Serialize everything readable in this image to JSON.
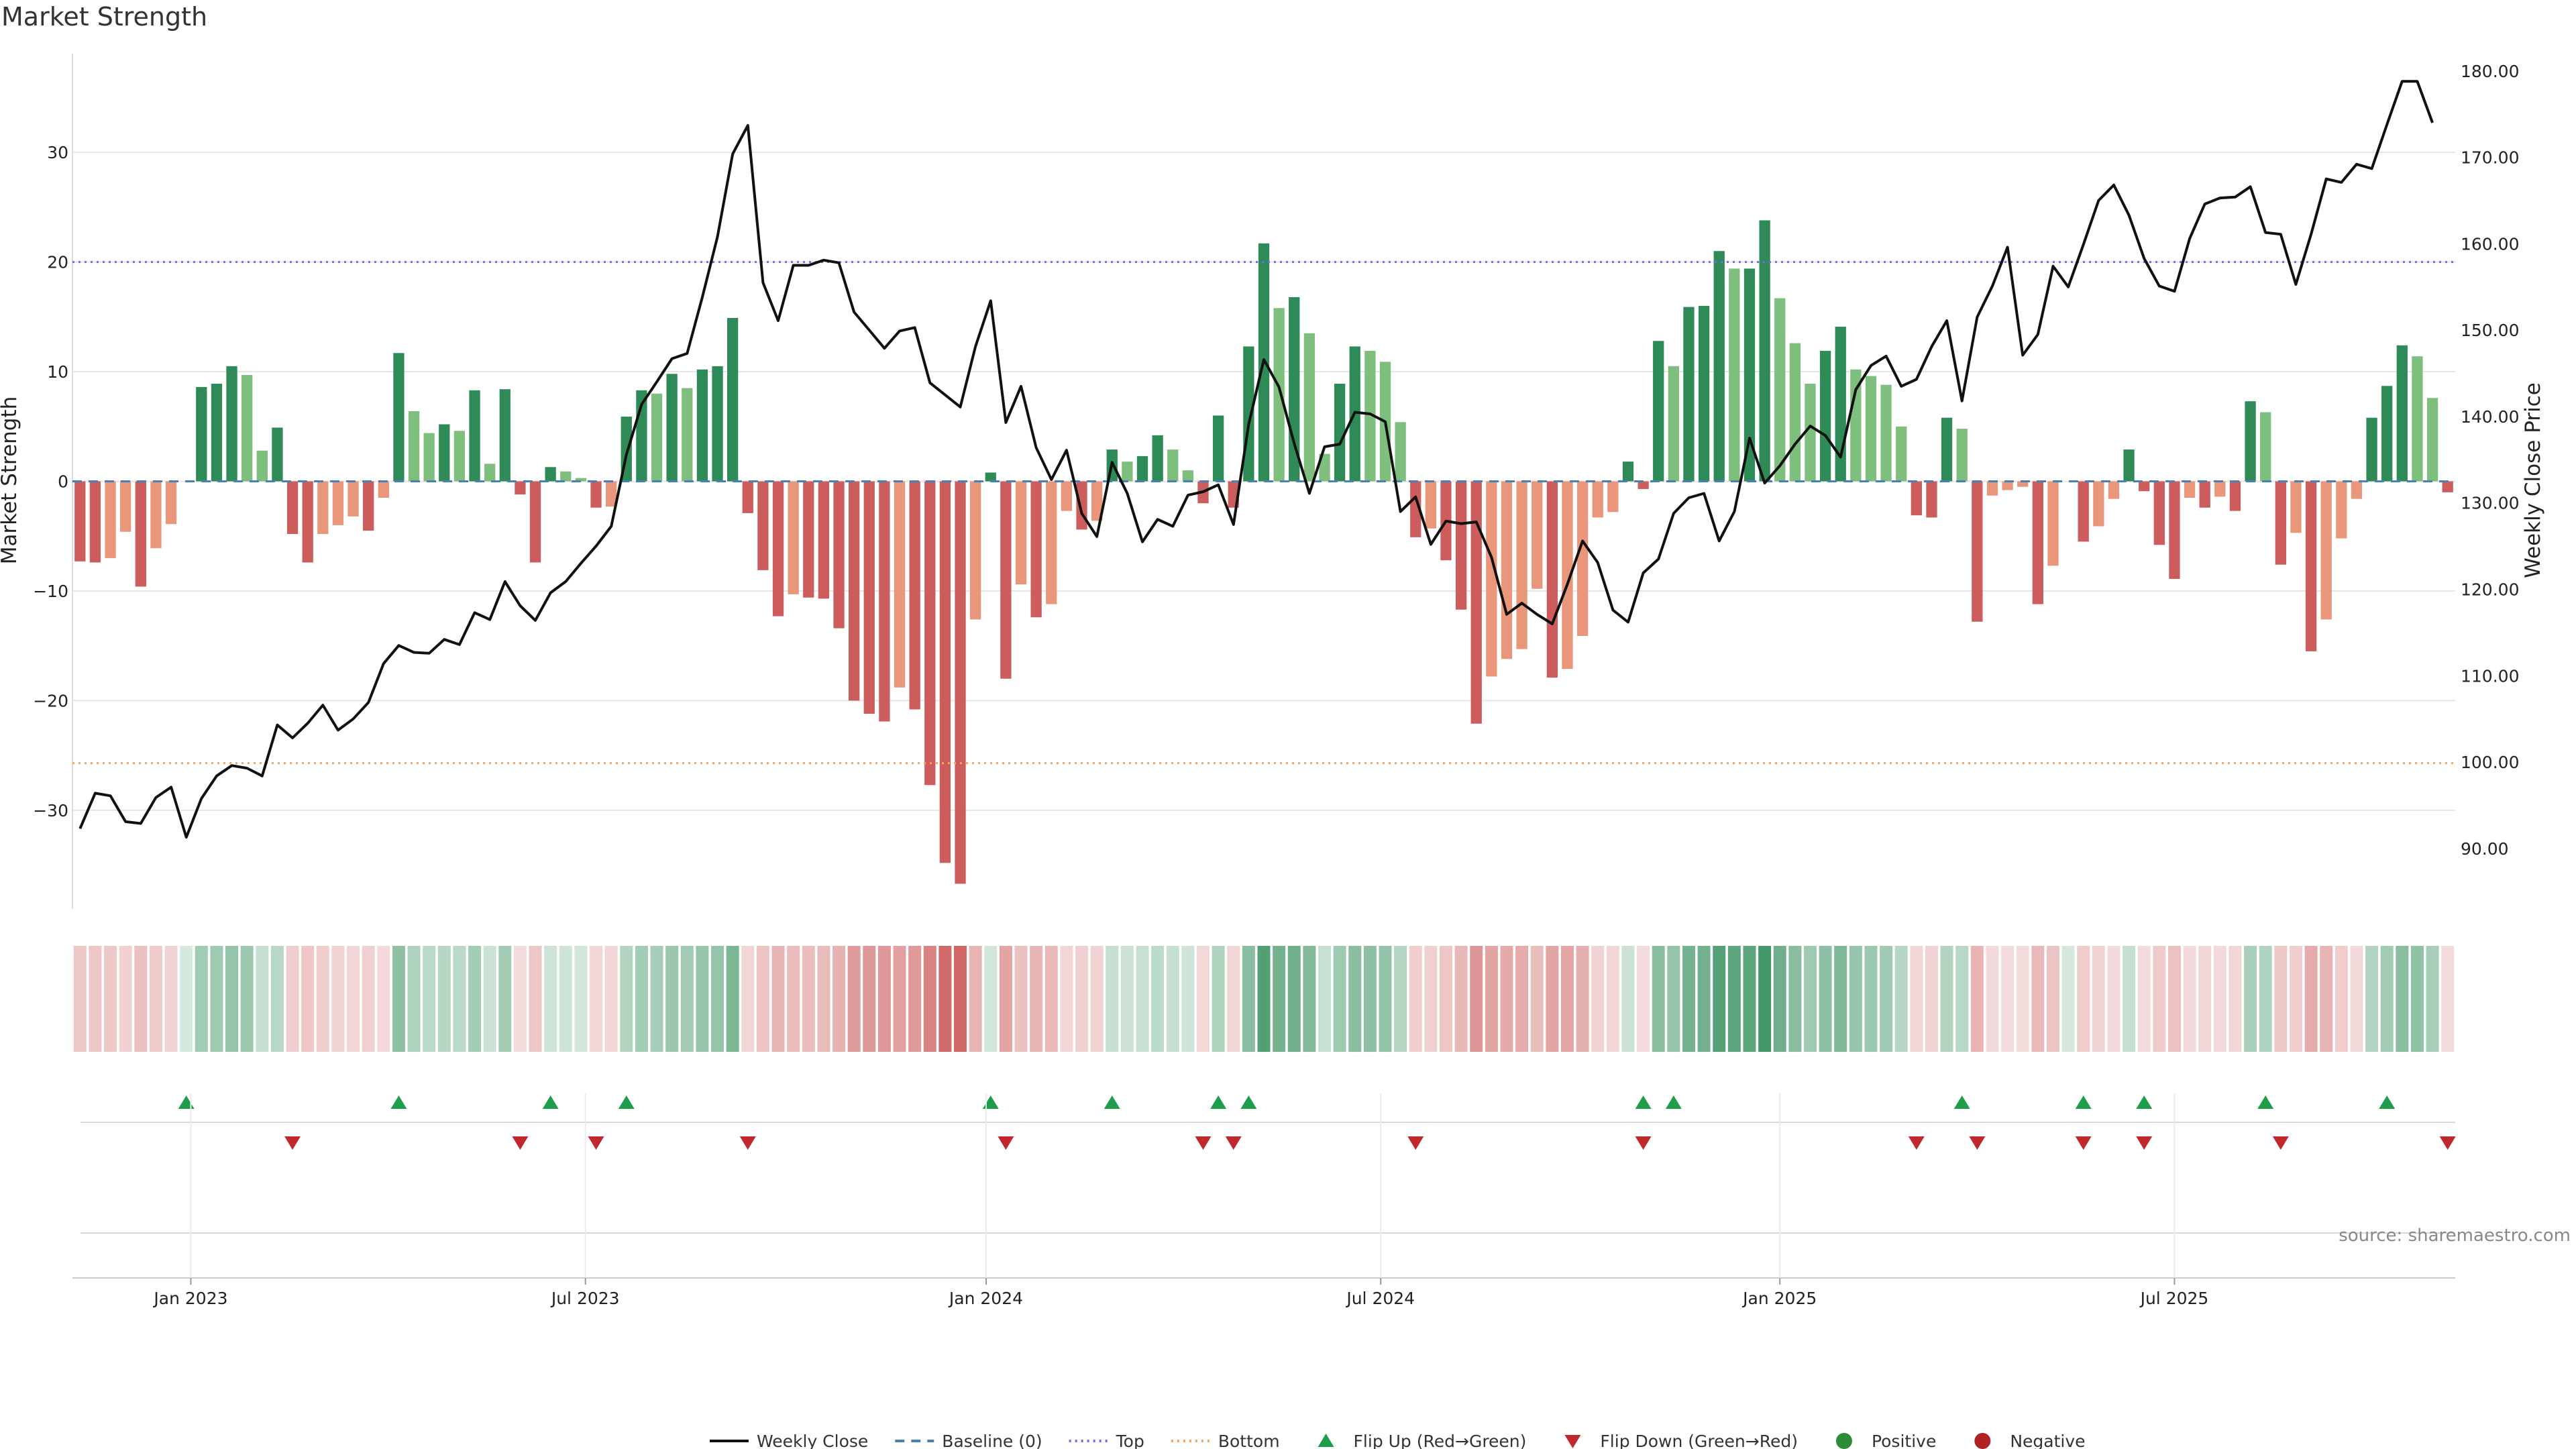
{
  "chart_data": {
    "type": "bar",
    "title": "Market Strength",
    "ylabel": "Market Strength",
    "y2label": "Weekly Close Price",
    "source": "source: sharemaestro.com",
    "ylim": [
      -39,
      39
    ],
    "y2lim": [
      83,
      182
    ],
    "yticks": [
      {
        "v": 30,
        "t": "30"
      },
      {
        "v": 20,
        "t": "20"
      },
      {
        "v": 10,
        "t": "10"
      },
      {
        "v": 0,
        "t": "0"
      },
      {
        "v": -10,
        "t": "−10"
      },
      {
        "v": -20,
        "t": "−20"
      },
      {
        "v": -30,
        "t": "−30"
      }
    ],
    "y2ticks": [
      {
        "v": 180,
        "t": "180.00"
      },
      {
        "v": 170,
        "t": "170.00"
      },
      {
        "v": 160,
        "t": "160.00"
      },
      {
        "v": 150,
        "t": "150.00"
      },
      {
        "v": 140,
        "t": "140.00"
      },
      {
        "v": 130,
        "t": "130.00"
      },
      {
        "v": 120,
        "t": "120.00"
      },
      {
        "v": 110,
        "t": "110.00"
      },
      {
        "v": 100,
        "t": "100.00"
      },
      {
        "v": 90,
        "t": "90.00"
      }
    ],
    "xticks": [
      {
        "label": "Jan 2023",
        "week": 7.3
      },
      {
        "label": "Jul 2023",
        "week": 33.3
      },
      {
        "label": "Jan 2024",
        "week": 59.7
      },
      {
        "label": "Jul 2024",
        "week": 85.7
      },
      {
        "label": "Jan 2025",
        "week": 112
      },
      {
        "label": "Jul 2025",
        "week": 138
      }
    ],
    "top_level": 20,
    "bottom_level": -25.7,
    "baseline": 0,
    "strength": [
      -7.3,
      -7.4,
      -7.0,
      -4.6,
      -9.6,
      -6.1,
      -3.9,
      0,
      8.6,
      8.9,
      10.5,
      9.7,
      2.8,
      4.9,
      -4.8,
      -7.4,
      -4.8,
      -4.0,
      -3.2,
      -4.5,
      -1.5,
      11.7,
      6.4,
      4.4,
      5.2,
      4.6,
      8.3,
      1.6,
      8.4,
      -1.2,
      -7.4,
      1.3,
      0.9,
      0.3,
      -2.4,
      -2.3,
      5.9,
      8.3,
      8.0,
      9.8,
      8.5,
      10.2,
      10.5,
      14.9,
      -2.9,
      -8.1,
      -12.3,
      -10.3,
      -10.6,
      -10.7,
      -13.4,
      -20.0,
      -21.2,
      -21.9,
      -18.8,
      -20.8,
      -27.7,
      -34.8,
      -36.7,
      -12.6,
      0.8,
      -18.0,
      -9.4,
      -12.4,
      -11.2,
      -2.7,
      -4.4,
      -3.6,
      2.9,
      1.8,
      2.3,
      4.2,
      2.9,
      1.0,
      -2.0,
      6.0,
      -2.4,
      12.3,
      21.7,
      15.8,
      16.8,
      13.5,
      2.5,
      8.9,
      12.3,
      11.9,
      10.9,
      5.4,
      -5.1,
      -4.3,
      -7.2,
      -11.7,
      -22.1,
      -17.8,
      -16.2,
      -15.3,
      -9.8,
      -17.9,
      -17.1,
      -14.1,
      -3.3,
      -2.8,
      1.8,
      -0.7,
      12.8,
      10.5,
      15.9,
      16.0,
      21.0,
      19.4,
      19.4,
      23.8,
      16.7,
      12.6,
      8.9,
      11.9,
      14.1,
      10.2,
      9.6,
      8.8,
      5.0,
      -3.1,
      -3.3,
      5.8,
      4.8,
      -12.8,
      -1.3,
      -0.8,
      -0.5,
      -11.2,
      -7.7,
      0,
      -5.5,
      -4.1,
      -1.6,
      2.9,
      -0.9,
      -5.8,
      -8.9,
      -1.5,
      -2.4,
      -1.4,
      -2.7,
      7.3,
      6.3,
      -7.6,
      -4.7,
      -15.5,
      -12.6,
      -5.2,
      -1.6,
      5.8,
      8.7,
      12.4,
      11.4,
      7.6,
      -1.0
    ],
    "close_series": {
      "name": "Weekly Close",
      "points": [
        [
          0,
          92.3
        ],
        [
          1,
          96.4
        ],
        [
          2,
          96.1
        ],
        [
          3,
          93.1
        ],
        [
          4,
          92.9
        ],
        [
          5,
          95.9
        ],
        [
          6,
          97.1
        ],
        [
          7,
          91.3
        ],
        [
          8,
          95.8
        ],
        [
          9,
          98.4
        ],
        [
          10,
          99.6
        ],
        [
          11,
          99.3
        ],
        [
          12,
          98.4
        ],
        [
          13,
          104.3
        ],
        [
          14,
          102.8
        ],
        [
          15,
          104.5
        ],
        [
          16,
          106.6
        ],
        [
          17,
          103.7
        ],
        [
          18,
          105.0
        ],
        [
          19,
          106.9
        ],
        [
          20,
          111.4
        ],
        [
          21,
          113.5
        ],
        [
          22,
          112.7
        ],
        [
          23,
          112.6
        ],
        [
          24,
          114.2
        ],
        [
          25,
          113.6
        ],
        [
          26,
          117.3
        ],
        [
          27,
          116.5
        ],
        [
          28,
          120.9
        ],
        [
          29,
          118.1
        ],
        [
          30,
          116.4
        ],
        [
          31,
          119.6
        ],
        [
          32,
          120.9
        ],
        [
          33,
          123.0
        ],
        [
          34,
          125.0
        ],
        [
          35,
          127.3
        ],
        [
          36,
          135.6
        ],
        [
          37,
          141.4
        ],
        [
          38,
          144.0
        ],
        [
          39,
          146.7
        ],
        [
          40,
          147.3
        ],
        [
          41,
          153.8
        ],
        [
          42,
          160.8
        ],
        [
          43,
          170.4
        ],
        [
          44,
          173.7
        ],
        [
          45,
          155.5
        ],
        [
          46,
          151.1
        ],
        [
          47,
          157.5
        ],
        [
          48,
          157.5
        ],
        [
          49,
          158.1
        ],
        [
          50,
          157.8
        ],
        [
          51,
          152.1
        ],
        [
          52,
          150.0
        ],
        [
          53,
          147.9
        ],
        [
          54,
          149.9
        ],
        [
          55,
          150.3
        ],
        [
          56,
          143.9
        ],
        [
          57,
          142.5
        ],
        [
          58,
          141.1
        ],
        [
          59,
          148.1
        ],
        [
          60,
          153.4
        ],
        [
          61,
          139.3
        ],
        [
          62,
          143.5
        ],
        [
          63,
          136.4
        ],
        [
          64,
          132.7
        ],
        [
          65,
          136.1
        ],
        [
          66,
          128.8
        ],
        [
          67,
          126.1
        ],
        [
          68,
          134.7
        ],
        [
          69,
          131.1
        ],
        [
          70,
          125.5
        ],
        [
          71,
          128.1
        ],
        [
          72,
          127.3
        ],
        [
          73,
          130.9
        ],
        [
          74,
          131.3
        ],
        [
          75,
          132.1
        ],
        [
          76,
          127.5
        ],
        [
          77,
          139.1
        ],
        [
          78,
          146.6
        ],
        [
          79,
          143.4
        ],
        [
          80,
          136.9
        ],
        [
          81,
          131.1
        ],
        [
          82,
          136.5
        ],
        [
          83,
          136.8
        ],
        [
          84,
          140.5
        ],
        [
          85,
          140.3
        ],
        [
          86,
          139.4
        ],
        [
          87,
          129.0
        ],
        [
          88,
          130.7
        ],
        [
          89,
          125.2
        ],
        [
          90,
          127.9
        ],
        [
          91,
          127.6
        ],
        [
          92,
          127.8
        ],
        [
          93,
          123.7
        ],
        [
          94,
          117.1
        ],
        [
          95,
          118.4
        ],
        [
          96,
          117.1
        ],
        [
          97,
          116.0
        ],
        [
          98,
          120.6
        ],
        [
          99,
          125.6
        ],
        [
          100,
          123.1
        ],
        [
          101,
          117.6
        ],
        [
          102,
          116.2
        ],
        [
          103,
          121.9
        ],
        [
          104,
          123.5
        ],
        [
          105,
          128.8
        ],
        [
          106,
          130.6
        ],
        [
          107,
          131.1
        ],
        [
          108,
          125.6
        ],
        [
          109,
          129.0
        ],
        [
          110,
          137.5
        ],
        [
          111,
          132.3
        ],
        [
          112,
          134.3
        ],
        [
          113,
          136.8
        ],
        [
          114,
          138.9
        ],
        [
          115,
          137.8
        ],
        [
          116,
          135.3
        ],
        [
          117,
          143.1
        ],
        [
          118,
          145.9
        ],
        [
          119,
          147.0
        ],
        [
          120,
          143.5
        ],
        [
          121,
          144.3
        ],
        [
          122,
          148.1
        ],
        [
          123,
          151.1
        ],
        [
          124,
          141.8
        ],
        [
          125,
          151.5
        ],
        [
          126,
          155.1
        ],
        [
          127,
          159.6
        ],
        [
          128,
          147.1
        ],
        [
          129,
          149.5
        ],
        [
          130,
          157.4
        ],
        [
          131,
          155.0
        ],
        [
          132,
          159.9
        ],
        [
          133,
          165.0
        ],
        [
          134,
          166.8
        ],
        [
          135,
          163.3
        ],
        [
          136,
          158.3
        ],
        [
          137,
          155.1
        ],
        [
          138,
          154.5
        ],
        [
          139,
          160.6
        ],
        [
          140,
          164.6
        ],
        [
          141,
          165.3
        ],
        [
          142,
          165.4
        ],
        [
          143,
          166.6
        ],
        [
          144,
          161.3
        ],
        [
          145,
          161.1
        ],
        [
          146,
          155.3
        ],
        [
          147,
          161.1
        ],
        [
          148,
          167.5
        ],
        [
          149,
          167.1
        ],
        [
          150,
          169.2
        ],
        [
          151,
          168.7
        ],
        [
          152,
          173.8
        ],
        [
          153,
          178.8
        ],
        [
          154,
          178.8
        ],
        [
          155,
          174.0
        ]
      ]
    },
    "flip_up_weeks": [
      7,
      21,
      31,
      36,
      60,
      68,
      75,
      77,
      103,
      105,
      124,
      132,
      136,
      144,
      152
    ],
    "flip_down_weeks": [
      14,
      29,
      34,
      44,
      61,
      74,
      76,
      88,
      103,
      121,
      125,
      132,
      136,
      145,
      156
    ],
    "colors": {
      "strong_positive": "#2e8b57",
      "weak_positive": "#7ebf7e",
      "strong_negative": "#cd5c5c",
      "weak_negative": "#e9967a",
      "price_line": "#111111",
      "top_line": "#7b68ee",
      "bottom_line": "#f4a460",
      "baseline": "#4682b4",
      "flip_up": "#1e9e4a",
      "flip_down": "#c0282d",
      "positive_dot": "#2e8b3a",
      "negative_dot": "#b22222",
      "grid": "#e6e6e6"
    },
    "legend": [
      {
        "label": "Weekly Close",
        "kind": "line",
        "color": "#111111"
      },
      {
        "label": "Baseline (0)",
        "kind": "dash",
        "color": "#4682b4"
      },
      {
        "label": "Top",
        "kind": "dot",
        "color": "#7b68ee"
      },
      {
        "label": "Bottom",
        "kind": "dot",
        "color": "#f4a460"
      },
      {
        "label": "Flip Up (Red→Green)",
        "kind": "tri-up",
        "color": "#1e9e4a"
      },
      {
        "label": "Flip Down (Green→Red)",
        "kind": "tri-down",
        "color": "#c0282d"
      },
      {
        "label": "Positive",
        "kind": "circle",
        "color": "#2e8b3a"
      },
      {
        "label": "Negative",
        "kind": "circle",
        "color": "#b22222"
      }
    ]
  }
}
